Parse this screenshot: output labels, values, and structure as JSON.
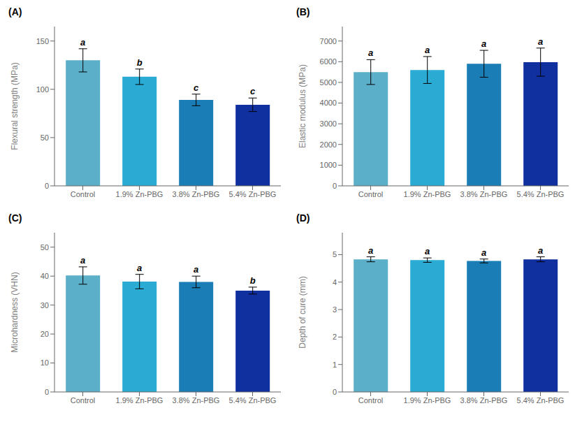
{
  "chart_data": [
    {
      "type": "bar",
      "title": "(A)",
      "y_label": "Flexural strength (MPa)",
      "categories": [
        "Control",
        "1.9% Zn-PBG",
        "3.8% Zn-PBG",
        "5.4% Zn-PBG"
      ],
      "values": [
        130,
        113,
        89,
        84
      ],
      "errors": [
        12,
        8,
        6,
        7
      ],
      "annotations": [
        "a",
        "b",
        "c",
        "c"
      ],
      "colors": [
        "#5BAFC8",
        "#29ABD4",
        "#1A7DB5",
        "#1030A0"
      ],
      "ylim": [
        0,
        165
      ],
      "yticks": [
        0,
        50,
        100,
        150
      ],
      "grid": false
    },
    {
      "type": "bar",
      "title": "(B)",
      "y_label": "Elastic modulus (MPa)",
      "categories": [
        "Control",
        "1.9% Zn-PBG",
        "3.8% Zn-PBG",
        "5.4% Zn-PBG"
      ],
      "values": [
        5500,
        5600,
        5900,
        5980
      ],
      "errors": [
        600,
        650,
        650,
        680
      ],
      "annotations": [
        "a",
        "a",
        "a",
        "a"
      ],
      "colors": [
        "#5BAFC8",
        "#29ABD4",
        "#1A7DB5",
        "#1030A0"
      ],
      "ylim": [
        0,
        7700
      ],
      "yticks": [
        0,
        1000,
        2000,
        3000,
        4000,
        5000,
        6000,
        7000
      ],
      "grid": false
    },
    {
      "type": "bar",
      "title": "(C)",
      "y_label": "Microhardness (VHN)",
      "categories": [
        "Control",
        "1.9% Zn-PBG",
        "3.8% Zn-PBG",
        "5.4% Zn-PBG"
      ],
      "values": [
        40.2,
        38.1,
        38.0,
        35.0
      ],
      "errors": [
        3.0,
        2.5,
        2.0,
        1.2
      ],
      "annotations": [
        "a",
        "a",
        "a",
        "b"
      ],
      "colors": [
        "#5BAFC8",
        "#29ABD4",
        "#1A7DB5",
        "#1030A0"
      ],
      "ylim": [
        0,
        55
      ],
      "yticks": [
        0,
        10,
        20,
        30,
        40,
        50
      ],
      "grid": false
    },
    {
      "type": "bar",
      "title": "(D)",
      "y_label": "Depth of cure (mm)",
      "categories": [
        "Control",
        "1.9% Zn-PBG",
        "3.8% Zn-PBG",
        "5.4% Zn-PBG"
      ],
      "values": [
        4.83,
        4.8,
        4.77,
        4.83
      ],
      "errors": [
        0.09,
        0.08,
        0.07,
        0.09
      ],
      "annotations": [
        "a",
        "a",
        "a",
        "a"
      ],
      "colors": [
        "#5BAFC8",
        "#29ABD4",
        "#1A7DB5",
        "#1030A0"
      ],
      "ylim": [
        0,
        5.8
      ],
      "yticks": [
        0,
        1,
        2,
        3,
        4,
        5
      ],
      "grid": false
    }
  ]
}
